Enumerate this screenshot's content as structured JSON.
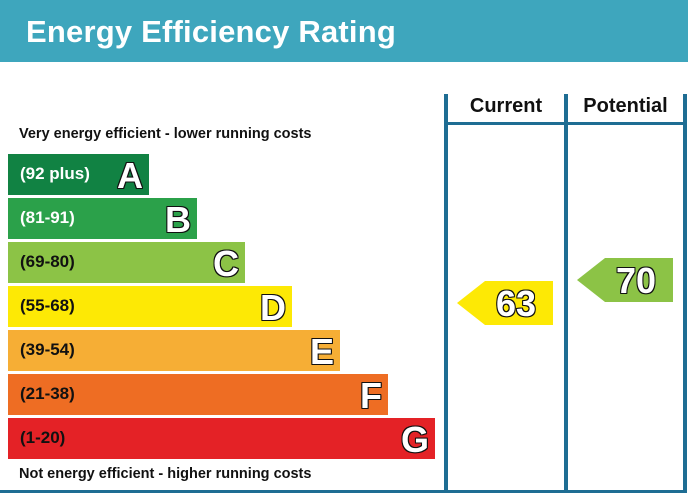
{
  "header": {
    "title": "Energy Efficiency Rating"
  },
  "captions": {
    "top": "Very energy efficient - lower running costs",
    "bottom": "Not energy efficient - higher running costs"
  },
  "columns": {
    "current": "Current",
    "potential": "Potential"
  },
  "bands": [
    {
      "range": "(92 plus)",
      "letter": "A",
      "color": "#118243",
      "text_color": "#ffffff"
    },
    {
      "range": "(81-91)",
      "letter": "B",
      "color": "#2ba14a",
      "text_color": "#ffffff"
    },
    {
      "range": "(69-80)",
      "letter": "C",
      "color": "#8cc346",
      "text_color": "#111111"
    },
    {
      "range": "(55-68)",
      "letter": "D",
      "color": "#fde905",
      "text_color": "#111111"
    },
    {
      "range": "(39-54)",
      "letter": "E",
      "color": "#f6ae35",
      "text_color": "#111111"
    },
    {
      "range": "(21-38)",
      "letter": "F",
      "color": "#ee6d23",
      "text_color": "#111111"
    },
    {
      "range": "(1-20)",
      "letter": "G",
      "color": "#e42226",
      "text_color": "#111111"
    }
  ],
  "ratings": {
    "current": {
      "value": "63",
      "band": "D",
      "color": "#fde905"
    },
    "potential": {
      "value": "70",
      "band": "C",
      "color": "#8cc346"
    }
  }
}
